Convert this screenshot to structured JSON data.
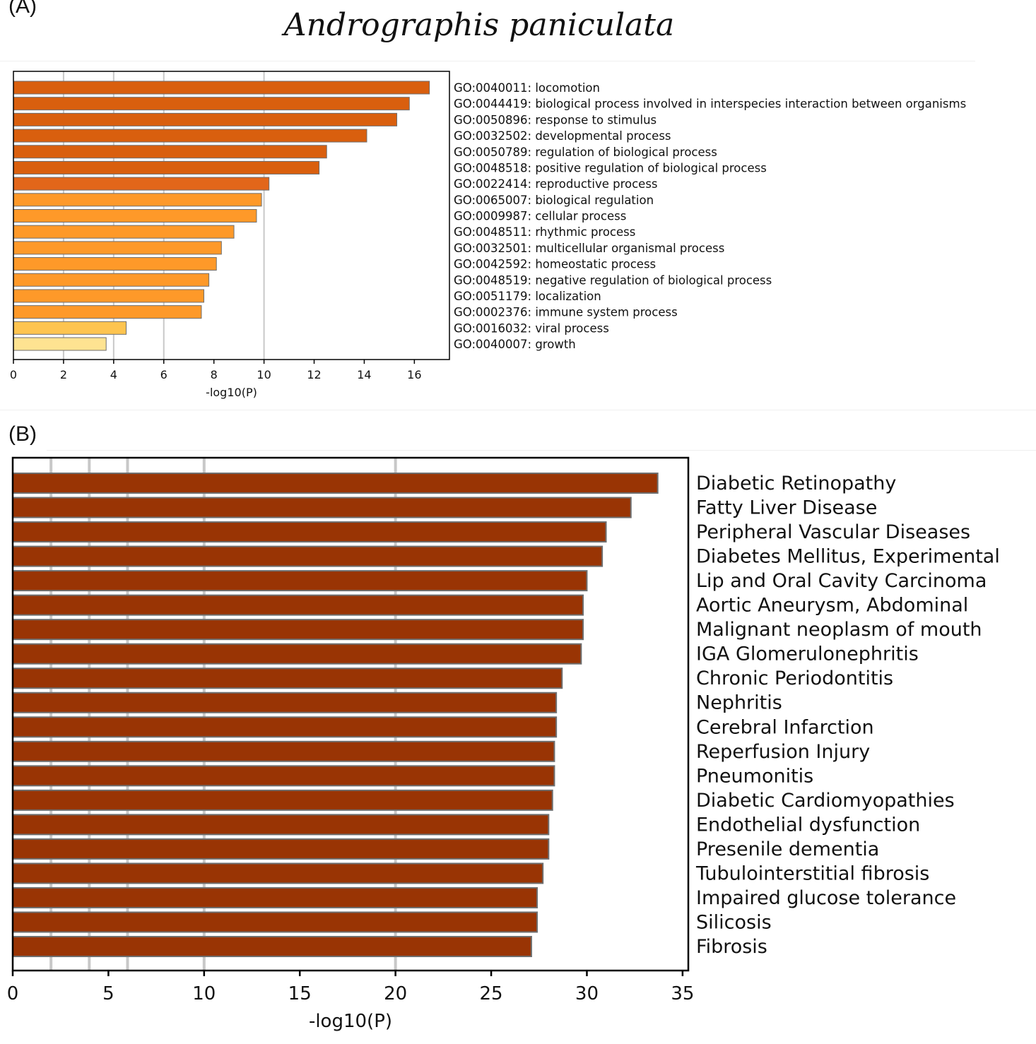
{
  "figure_title": "Andrographis paniculata",
  "panels": {
    "a_label": "(A)",
    "b_label": "(B)"
  },
  "chart_data": [
    {
      "type": "bar",
      "orientation": "horizontal",
      "panel": "(A)",
      "xlabel": "-log10(P)",
      "xlim": [
        0,
        17.4
      ],
      "xticks": [
        0,
        2,
        4,
        6,
        8,
        10,
        12,
        14,
        16
      ],
      "grid_x": [
        2,
        4,
        6,
        10
      ],
      "categories": [
        "GO:0040011: locomotion",
        "GO:0044419: biological process involved in interspecies interaction between organisms",
        "GO:0050896: response to stimulus",
        "GO:0032502: developmental process",
        "GO:0050789: regulation of biological process",
        "GO:0048518: positive regulation of biological process",
        "GO:0022414: reproductive process",
        "GO:0065007: biological regulation",
        "GO:0009987: cellular process",
        "GO:0048511: rhythmic process",
        "GO:0032501: multicellular organismal process",
        "GO:0042592: homeostatic process",
        "GO:0048519: negative regulation of biological process",
        "GO:0051179: localization",
        "GO:0002376: immune system process",
        "GO:0016032: viral process",
        "GO:0040007: growth"
      ],
      "values": [
        16.6,
        15.8,
        15.3,
        14.1,
        12.5,
        12.2,
        10.2,
        9.9,
        9.7,
        8.8,
        8.3,
        8.1,
        7.8,
        7.6,
        7.5,
        4.5,
        3.7
      ],
      "colors": [
        "#d95f0e",
        "#d95f0e",
        "#d95f0e",
        "#d95f0e",
        "#d95f0e",
        "#d95f0e",
        "#e2661a",
        "#fe9929",
        "#fe9929",
        "#fe9929",
        "#fe9929",
        "#fe9929",
        "#fe9929",
        "#fe9929",
        "#fe9929",
        "#fec44f",
        "#fee391"
      ]
    },
    {
      "type": "bar",
      "orientation": "horizontal",
      "panel": "(B)",
      "xlabel": "-log10(P)",
      "xlim": [
        0,
        35.3
      ],
      "xticks": [
        0,
        5,
        10,
        15,
        20,
        25,
        30,
        35
      ],
      "grid_x": [
        2,
        4,
        6,
        10,
        20
      ],
      "bar_color": "#993404",
      "categories": [
        "Diabetic Retinopathy",
        "Fatty Liver Disease",
        "Peripheral Vascular Diseases",
        "Diabetes Mellitus, Experimental",
        "Lip and Oral Cavity Carcinoma",
        "Aortic Aneurysm, Abdominal",
        "Malignant neoplasm of mouth",
        "IGA Glomerulonephritis",
        "Chronic Periodontitis",
        "Nephritis",
        "Cerebral Infarction",
        "Reperfusion Injury",
        "Pneumonitis",
        "Diabetic Cardiomyopathies",
        "Endothelial dysfunction",
        "Presenile dementia",
        "Tubulointerstitial fibrosis",
        "Impaired glucose tolerance",
        "Silicosis",
        "Fibrosis"
      ],
      "values": [
        33.7,
        32.3,
        31.0,
        30.8,
        30.0,
        29.8,
        29.8,
        29.7,
        28.7,
        28.4,
        28.4,
        28.3,
        28.3,
        28.2,
        28.0,
        28.0,
        27.7,
        27.4,
        27.4,
        27.1
      ]
    }
  ]
}
